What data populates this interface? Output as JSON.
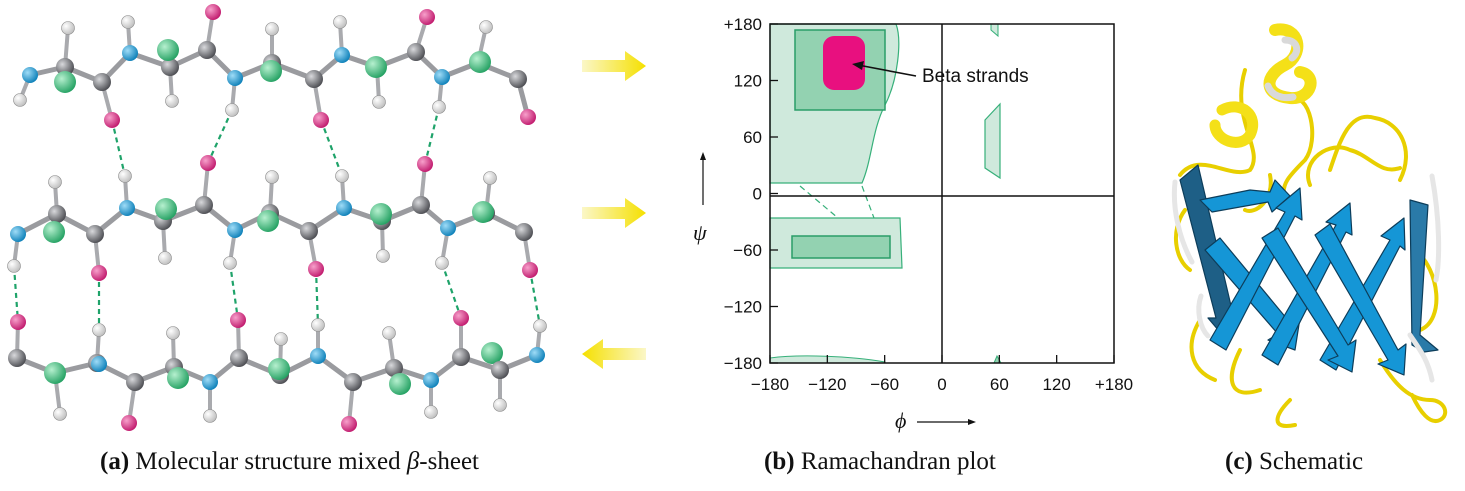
{
  "captions": {
    "a": {
      "letter": "(a)",
      "text": "Molecular structure mixed ",
      "beta": "β",
      "suffix": "-sheet"
    },
    "b": {
      "letter": "(b)",
      "text": "Ramachandran plot"
    },
    "c": {
      "letter": "(c)",
      "text": "Schematic"
    }
  },
  "strand_directions": [
    "right",
    "right",
    "left"
  ],
  "atom_colors": {
    "carbon": "#6e6f74",
    "nitrogen": "#1ea0dc",
    "oxygen": "#e0328c",
    "hydrogen": "#ffffff",
    "side_chain": "#3ec282",
    "hbond": "#1fa36a"
  },
  "arrow_color": "#f5e000",
  "ramachandran": {
    "x_axis_symbol": "ϕ",
    "y_axis_symbol": "ψ",
    "x_ticks": [
      "−180",
      "−120",
      "−60",
      "0",
      "60",
      "120",
      "+180"
    ],
    "y_ticks": [
      "+180",
      "120",
      "60",
      "0",
      "−60",
      "−120",
      "−180"
    ],
    "xlim": [
      -180,
      180
    ],
    "ylim": [
      -180,
      180
    ],
    "annotation": "Beta strands",
    "region_colors": {
      "allowed": "#cfe9dc",
      "core": "#8fd0ae",
      "edge": "#2fae72",
      "beta": "#e8107f"
    }
  },
  "schematic": {
    "strand_color": "#1596d6",
    "coil_color": "#f4e018",
    "helix_color": "#f4e018"
  }
}
